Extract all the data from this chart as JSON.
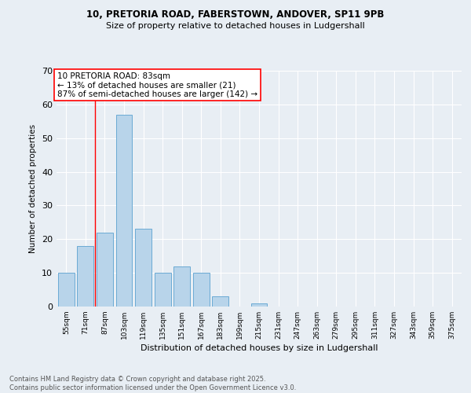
{
  "title1": "10, PRETORIA ROAD, FABERSTOWN, ANDOVER, SP11 9PB",
  "title2": "Size of property relative to detached houses in Ludgershall",
  "xlabel": "Distribution of detached houses by size in Ludgershall",
  "ylabel": "Number of detached properties",
  "categories": [
    "55sqm",
    "71sqm",
    "87sqm",
    "103sqm",
    "119sqm",
    "135sqm",
    "151sqm",
    "167sqm",
    "183sqm",
    "199sqm",
    "215sqm",
    "231sqm",
    "247sqm",
    "263sqm",
    "279sqm",
    "295sqm",
    "311sqm",
    "327sqm",
    "343sqm",
    "359sqm",
    "375sqm"
  ],
  "values": [
    10,
    18,
    22,
    57,
    23,
    10,
    12,
    10,
    3,
    0,
    1,
    0,
    0,
    0,
    0,
    0,
    0,
    0,
    0,
    0,
    0
  ],
  "bar_color": "#b8d4ea",
  "bar_edge_color": "#6aaad4",
  "vline_x": 1.5,
  "annotation_text": "10 PRETORIA ROAD: 83sqm\n← 13% of detached houses are smaller (21)\n87% of semi-detached houses are larger (142) →",
  "annotation_box_color": "white",
  "annotation_box_edgecolor": "red",
  "vline_color": "red",
  "footer": "Contains HM Land Registry data © Crown copyright and database right 2025.\nContains public sector information licensed under the Open Government Licence v3.0.",
  "background_color": "#e8eef4",
  "ylim": [
    0,
    70
  ],
  "yticks": [
    0,
    10,
    20,
    30,
    40,
    50,
    60,
    70
  ]
}
